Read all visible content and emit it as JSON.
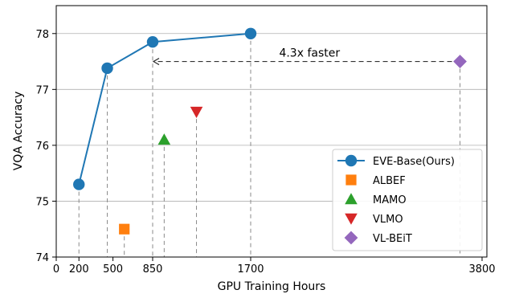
{
  "chart_data": {
    "type": "scatter",
    "xlabel": "GPU Training Hours",
    "ylabel": "VQA Accuracy",
    "xlim": [
      0,
      3800
    ],
    "ylim": [
      74,
      78.5
    ],
    "xticks": [
      0,
      200,
      500,
      850,
      1700,
      3800
    ],
    "xtick_labels": [
      "0",
      "200",
      "500",
      "850",
      "1700",
      "3800"
    ],
    "yticks": [
      74,
      75,
      76,
      77,
      78
    ],
    "ytick_labels": [
      "74",
      "75",
      "76",
      "77",
      "78"
    ],
    "grid": "horizontal",
    "legend_position": "lower right",
    "series": [
      {
        "name": "EVE-Base(Ours)",
        "marker": "circle",
        "line": true,
        "color": "#1f77b4",
        "points": [
          {
            "x": 200,
            "y": 75.3
          },
          {
            "x": 450,
            "y": 77.38
          },
          {
            "x": 850,
            "y": 77.85
          },
          {
            "x": 1700,
            "y": 78.0
          }
        ]
      },
      {
        "name": "ALBEF",
        "marker": "square",
        "line": false,
        "color": "#ff7f0e",
        "points": [
          {
            "x": 600,
            "y": 74.5
          }
        ]
      },
      {
        "name": "MAMO",
        "marker": "triangle-up",
        "line": false,
        "color": "#2ca02c",
        "points": [
          {
            "x": 950,
            "y": 76.1
          }
        ]
      },
      {
        "name": "VLMO",
        "marker": "triangle-down",
        "line": false,
        "color": "#d62728",
        "points": [
          {
            "x": 1230,
            "y": 76.6
          }
        ]
      },
      {
        "name": "VL-BEiT",
        "marker": "diamond",
        "line": false,
        "color": "#9467bd",
        "points": [
          {
            "x": 3600,
            "y": 77.5
          }
        ]
      }
    ],
    "annotation": {
      "text": "4.3x faster",
      "from_x": 3600,
      "to_x": 850,
      "y": 77.5
    }
  }
}
